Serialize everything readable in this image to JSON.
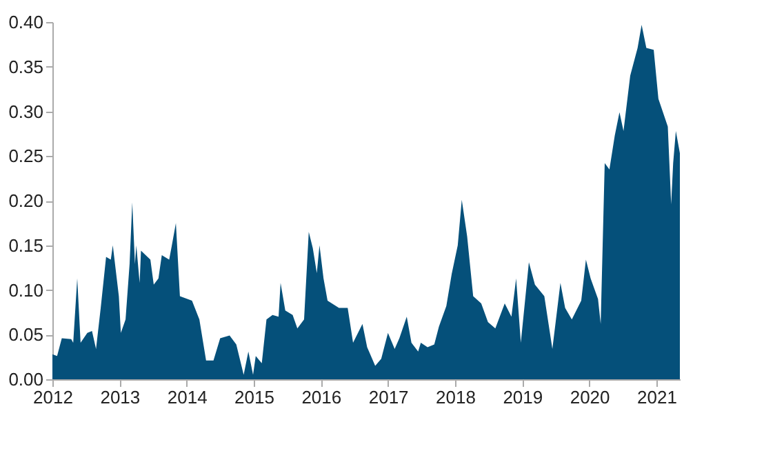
{
  "chart_data": {
    "type": "area",
    "x": [
      2012.0,
      2012.07,
      2012.14,
      2012.28,
      2012.31,
      2012.37,
      2012.42,
      2012.52,
      2012.59,
      2012.65,
      2012.72,
      2012.8,
      2012.87,
      2012.9,
      2012.99,
      2013.02,
      2013.09,
      2013.15,
      2013.19,
      2013.23,
      2013.25,
      2013.3,
      2013.32,
      2013.46,
      2013.51,
      2013.58,
      2013.63,
      2013.74,
      2013.78,
      2013.84,
      2013.9,
      2014.08,
      2014.19,
      2014.29,
      2014.4,
      2014.5,
      2014.64,
      2014.74,
      2014.85,
      2014.92,
      2014.99,
      2015.03,
      2015.12,
      2015.19,
      2015.28,
      2015.37,
      2015.4,
      2015.47,
      2015.58,
      2015.65,
      2015.75,
      2015.82,
      2015.88,
      2015.94,
      2015.98,
      2016.04,
      2016.1,
      2016.27,
      2016.4,
      2016.48,
      2016.62,
      2016.69,
      2016.81,
      2016.9,
      2017.0,
      2017.1,
      2017.17,
      2017.28,
      2017.35,
      2017.45,
      2017.49,
      2017.59,
      2017.69,
      2017.76,
      2017.87,
      2017.95,
      2018.04,
      2018.1,
      2018.18,
      2018.27,
      2018.39,
      2018.49,
      2018.6,
      2018.74,
      2018.84,
      2018.91,
      2018.98,
      2019.1,
      2019.19,
      2019.33,
      2019.45,
      2019.52,
      2019.57,
      2019.64,
      2019.74,
      2019.88,
      2019.95,
      2020.02,
      2020.13,
      2020.17,
      2020.23,
      2020.3,
      2020.38,
      2020.45,
      2020.51,
      2020.61,
      2020.72,
      2020.78,
      2020.85,
      2020.96,
      2021.03,
      2021.17,
      2021.22,
      2021.25,
      2021.29,
      2021.35
    ],
    "series": [
      {
        "color": "#05507a",
        "values": [
          0.028,
          0.026,
          0.046,
          0.045,
          0.041,
          0.113,
          0.041,
          0.052,
          0.054,
          0.034,
          0.08,
          0.137,
          0.134,
          0.15,
          0.093,
          0.052,
          0.067,
          0.129,
          0.198,
          0.129,
          0.15,
          0.108,
          0.144,
          0.134,
          0.106,
          0.113,
          0.139,
          0.134,
          0.15,
          0.175,
          0.093,
          0.088,
          0.067,
          0.021,
          0.021,
          0.046,
          0.049,
          0.039,
          0.005,
          0.031,
          0.005,
          0.026,
          0.018,
          0.067,
          0.072,
          0.07,
          0.108,
          0.077,
          0.072,
          0.057,
          0.067,
          0.165,
          0.147,
          0.119,
          0.15,
          0.113,
          0.088,
          0.08,
          0.08,
          0.041,
          0.062,
          0.036,
          0.015,
          0.023,
          0.052,
          0.034,
          0.046,
          0.07,
          0.041,
          0.031,
          0.041,
          0.036,
          0.039,
          0.059,
          0.082,
          0.118,
          0.15,
          0.201,
          0.16,
          0.093,
          0.085,
          0.064,
          0.057,
          0.085,
          0.07,
          0.113,
          0.041,
          0.131,
          0.106,
          0.093,
          0.034,
          0.077,
          0.108,
          0.08,
          0.067,
          0.088,
          0.134,
          0.113,
          0.09,
          0.062,
          0.242,
          0.235,
          0.273,
          0.299,
          0.278,
          0.34,
          0.371,
          0.397,
          0.371,
          0.369,
          0.314,
          0.283,
          0.196,
          0.242,
          0.278,
          0.253
        ]
      }
    ],
    "xlim": [
      2012,
      2021.35
    ],
    "xticks": [
      2012,
      2013,
      2014,
      2015,
      2016,
      2017,
      2018,
      2019,
      2020,
      2021
    ],
    "ylim": [
      0,
      0.4
    ],
    "yticks": [
      {
        "value": 0,
        "label": "0.00"
      },
      0.05,
      {
        "value": 0.1,
        "label": "0.10"
      },
      0.15,
      {
        "value": 0.2,
        "label": "0.20"
      },
      0.25,
      {
        "value": 0.3,
        "label": "0.30"
      },
      0.35,
      {
        "value": 0.4,
        "label": "0.40"
      }
    ],
    "grid": false,
    "legend": false
  }
}
